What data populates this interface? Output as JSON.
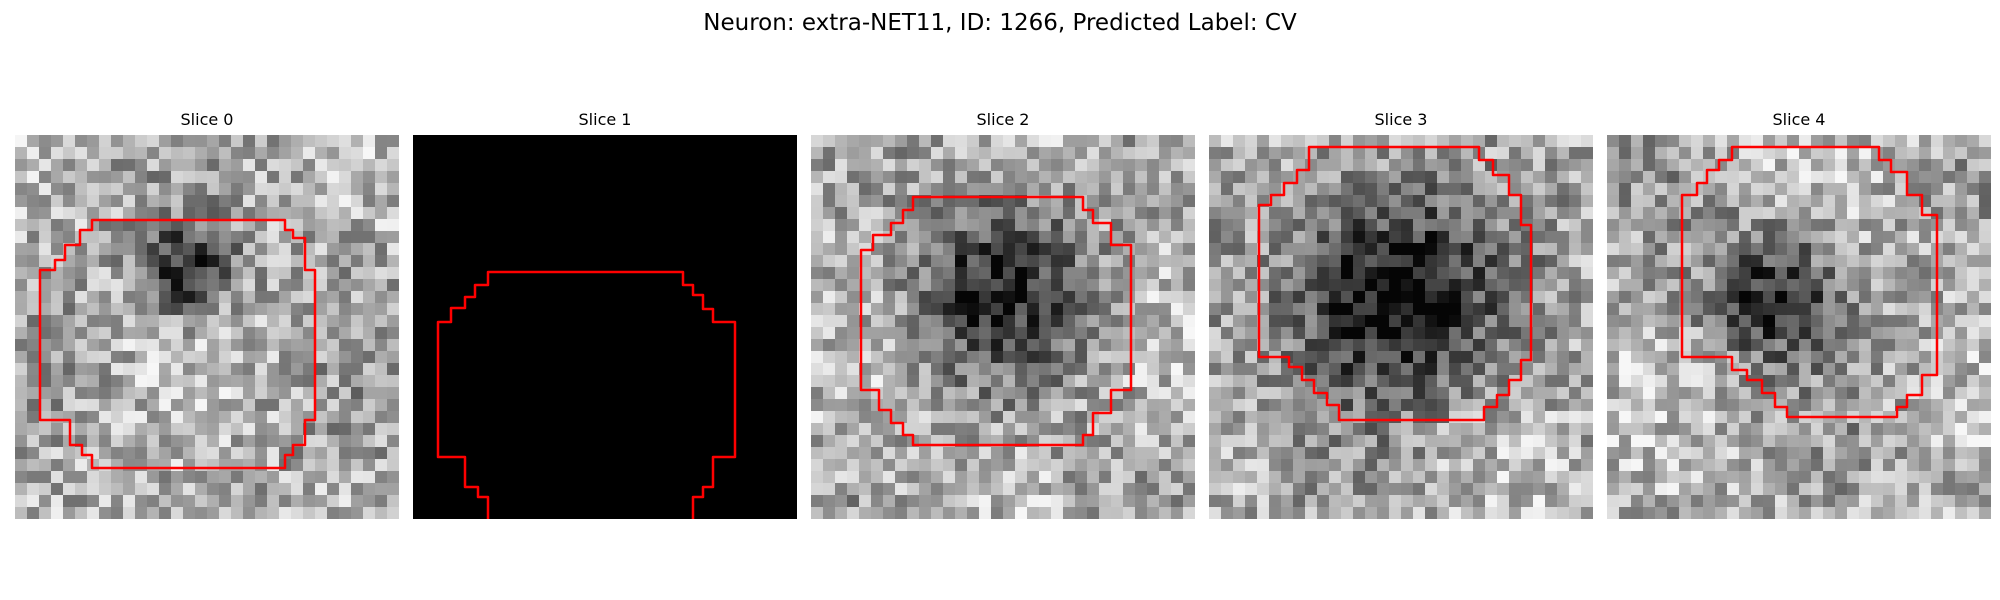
{
  "figure": {
    "title": "Neuron: extra-NET11, ID: 1266, Predicted Label: CV"
  },
  "panels": [
    {
      "label": "Slice 0",
      "seed": 11,
      "dark_center": [
        0.45,
        0.35
      ],
      "dark_strength": 0.55,
      "dark_radius": 0.12,
      "contour": "full-mid-left"
    },
    {
      "label": "Slice 1",
      "seed": 0,
      "black": true,
      "contour": "open-bottom"
    },
    {
      "label": "Slice 2",
      "seed": 23,
      "dark_center": [
        0.48,
        0.4
      ],
      "dark_strength": 0.5,
      "dark_radius": 0.22,
      "contour": "full-center"
    },
    {
      "label": "Slice 3",
      "seed": 37,
      "dark_center": [
        0.47,
        0.42
      ],
      "dark_strength": 0.7,
      "dark_radius": 0.26,
      "contour": "full-upper"
    },
    {
      "label": "Slice 4",
      "seed": 51,
      "dark_center": [
        0.43,
        0.42
      ],
      "dark_strength": 0.55,
      "dark_radius": 0.16,
      "contour": "full-upper-right"
    }
  ],
  "style": {
    "contour_color": "#ff0000",
    "background": "#ffffff"
  }
}
